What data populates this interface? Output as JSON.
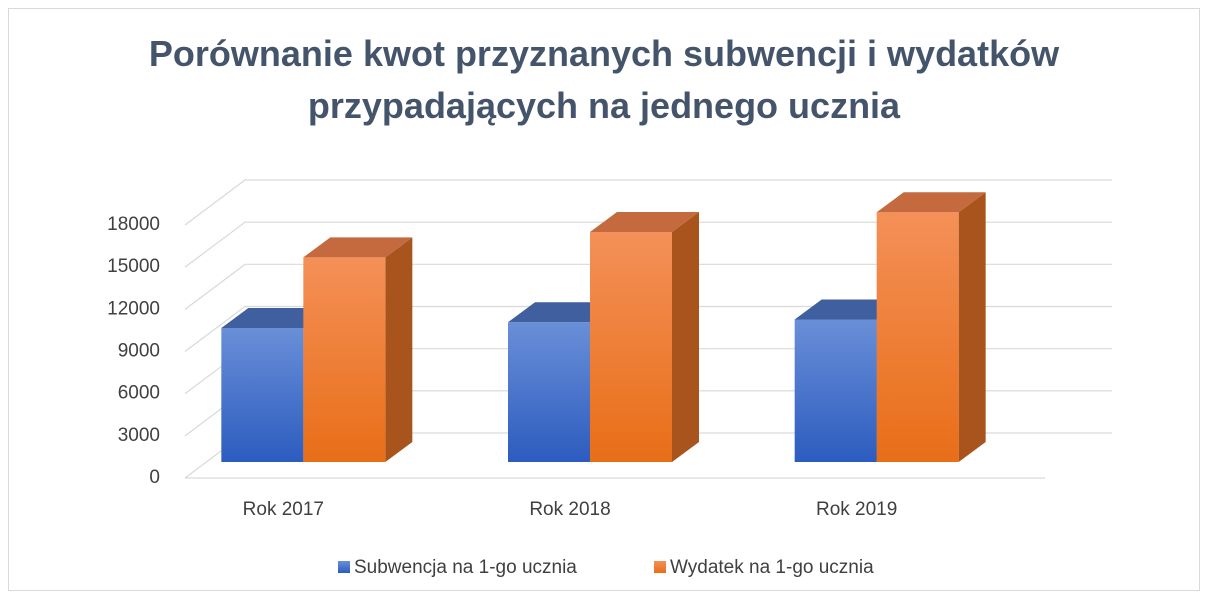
{
  "chart_data": {
    "type": "bar3d",
    "title": "Porównanie kwot przyznanych subwencji i wydatków przypadających na jednego ucznia",
    "categories": [
      "Rok 2017",
      "Rok 2018",
      "Rok 2019"
    ],
    "series": [
      {
        "name": "Subwencja na 1-go ucznia",
        "color": "#4472c4",
        "values": [
          9500,
          9900,
          10100
        ]
      },
      {
        "name": "Wydatek na 1-go ucznia",
        "color": "#ed7d31",
        "values": [
          14500,
          16300,
          17700
        ]
      }
    ],
    "ylim": [
      0,
      18000
    ],
    "yticks": [
      0,
      3000,
      6000,
      9000,
      12000,
      15000,
      18000
    ],
    "grid": true,
    "legend": "bottom"
  }
}
